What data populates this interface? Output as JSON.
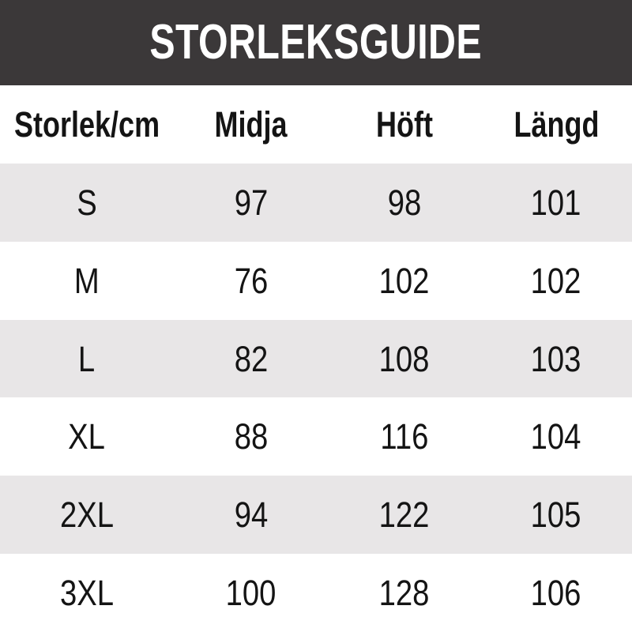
{
  "theme": {
    "banner_bg": "#3b3839",
    "banner_text": "#ffffff",
    "row_bg": "#ffffff",
    "row_alt_bg": "#e8e6e7",
    "text_color": "#141414"
  },
  "banner": {
    "title": "STORLEKSGUIDE"
  },
  "chart_data": {
    "type": "table",
    "title": "STORLEKSGUIDE",
    "columns": [
      "Storlek/cm",
      "Midja",
      "Höft",
      "Längd"
    ],
    "rows": [
      [
        "S",
        97,
        98,
        101
      ],
      [
        "M",
        76,
        102,
        102
      ],
      [
        "L",
        82,
        108,
        103
      ],
      [
        "XL",
        88,
        116,
        104
      ],
      [
        "2XL",
        94,
        122,
        105
      ],
      [
        "3XL",
        100,
        128,
        106
      ]
    ],
    "layout": {
      "header_bold": true,
      "row_striping": true,
      "striped_rows": [
        "S",
        "L",
        "2XL"
      ],
      "text_align": "center"
    }
  }
}
